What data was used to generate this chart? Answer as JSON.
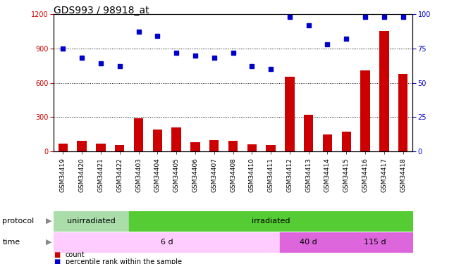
{
  "title": "GDS993 / 98918_at",
  "categories": [
    "GSM34419",
    "GSM34420",
    "GSM34421",
    "GSM34422",
    "GSM34403",
    "GSM34404",
    "GSM34405",
    "GSM34406",
    "GSM34407",
    "GSM34408",
    "GSM34410",
    "GSM34411",
    "GSM34412",
    "GSM34413",
    "GSM34414",
    "GSM34415",
    "GSM34416",
    "GSM34417",
    "GSM34418"
  ],
  "count_values": [
    70,
    95,
    70,
    55,
    290,
    190,
    210,
    80,
    100,
    90,
    60,
    55,
    650,
    320,
    145,
    175,
    710,
    1050,
    680
  ],
  "percentile_values": [
    75,
    68,
    64,
    62,
    87,
    84,
    72,
    70,
    68,
    72,
    62,
    60,
    98,
    92,
    78,
    82,
    98,
    98,
    98
  ],
  "bar_color": "#cc0000",
  "point_color": "#0000cc",
  "protocol_groups": [
    {
      "label": "unirradiated",
      "start": 0,
      "end": 4,
      "color": "#aaddaa"
    },
    {
      "label": "irradiated",
      "start": 4,
      "end": 19,
      "color": "#55cc33"
    }
  ],
  "time_groups": [
    {
      "label": "6 d",
      "start": 0,
      "end": 12,
      "color": "#ffccff"
    },
    {
      "label": "40 d",
      "start": 12,
      "end": 15,
      "color": "#dd66dd"
    },
    {
      "label": "115 d",
      "start": 15,
      "end": 19,
      "color": "#dd66dd"
    }
  ],
  "ylim_left": [
    0,
    1200
  ],
  "ylim_right": [
    0,
    100
  ],
  "yticks_left": [
    0,
    300,
    600,
    900,
    1200
  ],
  "yticks_right": [
    0,
    25,
    50,
    75,
    100
  ],
  "grid_values": [
    300,
    600,
    900
  ],
  "legend_items": [
    {
      "label": "count",
      "color": "#cc0000"
    },
    {
      "label": "percentile rank within the sample",
      "color": "#0000cc"
    }
  ],
  "title_fontsize": 10,
  "tick_fontsize": 7,
  "label_fontsize": 8,
  "row_label_fontsize": 8,
  "xtick_fontsize": 6.5
}
